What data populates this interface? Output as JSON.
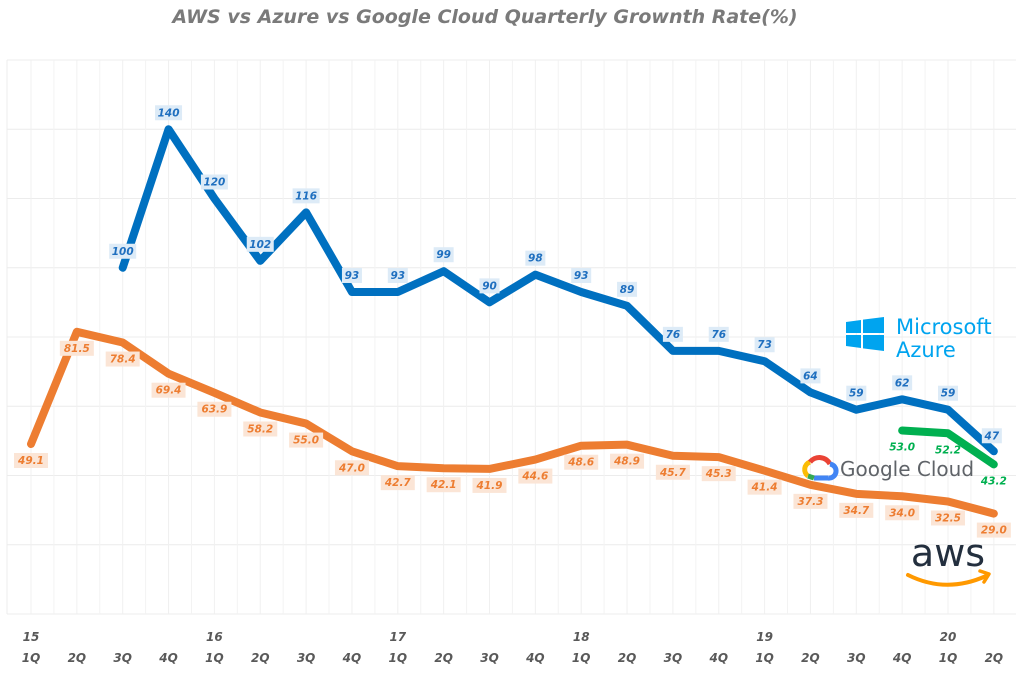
{
  "chart_data": {
    "type": "line",
    "title": "AWS vs Azure vs Google Cloud  Quarterly Grownth Rate(%)",
    "xlabel": "",
    "ylabel": "",
    "ylim": [
      0,
      160
    ],
    "y_gridlines": [
      0,
      20,
      40,
      60,
      80,
      100,
      120,
      140,
      160
    ],
    "grid": true,
    "categories": [
      "15 1Q",
      "2Q",
      "3Q",
      "4Q",
      "16 1Q",
      "2Q",
      "3Q",
      "4Q",
      "17 1Q",
      "2Q",
      "3Q",
      "4Q",
      "18 1Q",
      "2Q",
      "3Q",
      "4Q",
      "19 1Q",
      "2Q",
      "3Q",
      "4Q",
      "20 1Q",
      "2Q"
    ],
    "x_ticks": {
      "quarters": [
        "1Q",
        "2Q",
        "3Q",
        "4Q",
        "1Q",
        "2Q",
        "3Q",
        "4Q",
        "1Q",
        "2Q",
        "3Q",
        "4Q",
        "1Q",
        "2Q",
        "3Q",
        "4Q",
        "1Q",
        "2Q",
        "3Q",
        "4Q",
        "1Q",
        "2Q"
      ],
      "years": [
        "15",
        "",
        "",
        "",
        "16",
        "",
        "",
        "",
        "17",
        "",
        "",
        "",
        "18",
        "",
        "",
        "",
        "19",
        "",
        "",
        "",
        "20",
        ""
      ]
    },
    "series": [
      {
        "name": "Microsoft Azure",
        "color": "#0070c0",
        "label_color": "#1f6fbf",
        "label_bg": "#ddebf7",
        "label_format": "int",
        "values": [
          null,
          null,
          100,
          140,
          120,
          102,
          116,
          93,
          93,
          99,
          90,
          98,
          93,
          89,
          76,
          76,
          73,
          64,
          59,
          62,
          59,
          47
        ]
      },
      {
        "name": "AWS",
        "color": "#ed7d31",
        "label_color": "#ed7d31",
        "label_bg": "#fbe5d6",
        "label_format": "1dp",
        "values": [
          49.1,
          81.5,
          78.4,
          69.4,
          63.9,
          58.2,
          55.0,
          47.0,
          42.7,
          42.1,
          41.9,
          44.6,
          48.6,
          48.9,
          45.7,
          45.3,
          41.4,
          37.3,
          34.7,
          34.0,
          32.5,
          29.0
        ]
      },
      {
        "name": "Google Cloud",
        "color": "#00b050",
        "label_color": "#00b050",
        "label_bg": "",
        "label_format": "1dp",
        "values": [
          null,
          null,
          null,
          null,
          null,
          null,
          null,
          null,
          null,
          null,
          null,
          null,
          null,
          null,
          null,
          null,
          null,
          null,
          null,
          53.0,
          52.2,
          43.2
        ]
      }
    ],
    "legend": {
      "placement": "right",
      "entries": [
        {
          "name": "Microsoft Azure",
          "line1": "Microsoft",
          "line2": "Azure",
          "icon": "windows-logo-icon",
          "color": "#00a4ef"
        },
        {
          "name": "Google Cloud",
          "text": "Google Cloud",
          "icon": "google-cloud-logo-icon",
          "color": "#5f6368"
        },
        {
          "name": "AWS",
          "text": "aws",
          "icon": "amazon-smile-arrow-icon",
          "color": "#232f3e",
          "accent": "#ff9900"
        }
      ]
    }
  }
}
